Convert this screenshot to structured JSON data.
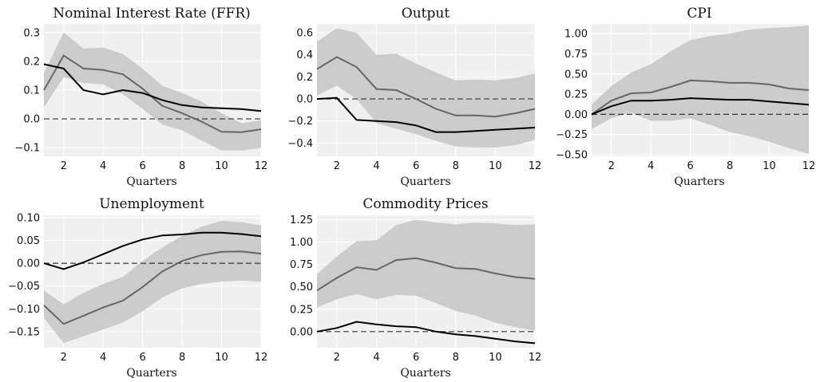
{
  "colors": {
    "band": "#cccccc",
    "median": "#666666",
    "point": "#000000",
    "zero": "#333333",
    "panel_bg": "#f0f0f0",
    "grid": "#ffffff"
  },
  "chart_data": [
    {
      "type": "line",
      "title": "Nominal Interest Rate (FFR)",
      "xlabel": "Quarters",
      "x": [
        1,
        2,
        3,
        4,
        5,
        6,
        7,
        8,
        9,
        10,
        11,
        12
      ],
      "xlim": [
        1,
        12
      ],
      "ylim": [
        -0.13,
        0.33
      ],
      "xticks": [
        2,
        4,
        6,
        8,
        10,
        12
      ],
      "yticks": [
        -0.1,
        0.0,
        0.1,
        0.2,
        0.3
      ],
      "ytick_labels": [
        "−0.1",
        "0.0",
        "0.1",
        "0.2",
        "0.3"
      ],
      "grid": true,
      "zero_line": 0,
      "band_upper": [
        0.16,
        0.3,
        0.245,
        0.248,
        0.225,
        0.175,
        0.115,
        0.09,
        0.06,
        0.02,
        -0.015,
        -0.005
      ],
      "band_lower": [
        0.04,
        0.145,
        0.125,
        0.12,
        0.085,
        0.035,
        -0.02,
        -0.04,
        -0.075,
        -0.11,
        -0.11,
        -0.1
      ],
      "median": [
        0.1,
        0.22,
        0.175,
        0.17,
        0.155,
        0.105,
        0.045,
        0.02,
        -0.01,
        -0.045,
        -0.046,
        -0.036
      ],
      "point": [
        0.19,
        0.175,
        0.1,
        0.085,
        0.1,
        0.09,
        0.065,
        0.048,
        0.04,
        0.037,
        0.034,
        0.027
      ]
    },
    {
      "type": "line",
      "title": "Output",
      "xlabel": "Quarters",
      "x": [
        1,
        2,
        3,
        4,
        5,
        6,
        7,
        8,
        9,
        10,
        11,
        12
      ],
      "xlim": [
        1,
        12
      ],
      "ylim": [
        -0.52,
        0.68
      ],
      "xticks": [
        2,
        4,
        6,
        8,
        10,
        12
      ],
      "yticks": [
        -0.4,
        -0.2,
        0.0,
        0.2,
        0.4,
        0.6
      ],
      "ytick_labels": [
        "−0.4",
        "−0.2",
        "0.0",
        "0.2",
        "0.4",
        "0.6"
      ],
      "grid": true,
      "zero_line": 0,
      "band_upper": [
        0.52,
        0.64,
        0.6,
        0.4,
        0.41,
        0.32,
        0.24,
        0.17,
        0.175,
        0.17,
        0.19,
        0.23
      ],
      "band_lower": [
        0.03,
        0.12,
        0.0,
        -0.22,
        -0.27,
        -0.32,
        -0.38,
        -0.43,
        -0.44,
        -0.44,
        -0.42,
        -0.37
      ],
      "median": [
        0.27,
        0.38,
        0.29,
        0.09,
        0.08,
        0.0,
        -0.09,
        -0.15,
        -0.15,
        -0.16,
        -0.13,
        -0.09
      ],
      "point": [
        0.0,
        0.01,
        -0.19,
        -0.2,
        -0.21,
        -0.24,
        -0.3,
        -0.3,
        -0.29,
        -0.28,
        -0.27,
        -0.26
      ]
    },
    {
      "type": "line",
      "title": "CPI",
      "xlabel": "Quarters",
      "x": [
        1,
        2,
        3,
        4,
        5,
        6,
        7,
        8,
        9,
        10,
        11,
        12
      ],
      "xlim": [
        1,
        12
      ],
      "ylim": [
        -0.52,
        1.12
      ],
      "xticks": [
        2,
        4,
        6,
        8,
        10,
        12
      ],
      "yticks": [
        -0.5,
        -0.25,
        0.0,
        0.25,
        0.5,
        0.75,
        1.0
      ],
      "ytick_labels": [
        "−0.50",
        "−0.25",
        "0.00",
        "0.25",
        "0.50",
        "0.75",
        "1.00"
      ],
      "grid": true,
      "zero_line": 0,
      "band_upper": [
        0.12,
        0.35,
        0.52,
        0.62,
        0.78,
        0.92,
        0.97,
        1.0,
        1.05,
        1.07,
        1.08,
        1.1
      ],
      "band_lower": [
        -0.18,
        -0.05,
        0.02,
        -0.08,
        -0.08,
        -0.05,
        -0.13,
        -0.22,
        -0.27,
        -0.34,
        -0.42,
        -0.49
      ],
      "median": [
        0.0,
        0.17,
        0.26,
        0.27,
        0.34,
        0.42,
        0.41,
        0.39,
        0.39,
        0.37,
        0.32,
        0.3
      ],
      "point": [
        0.0,
        0.1,
        0.17,
        0.17,
        0.18,
        0.2,
        0.19,
        0.18,
        0.18,
        0.16,
        0.14,
        0.12
      ]
    },
    {
      "type": "line",
      "title": "Unemployment",
      "xlabel": "Quarters",
      "x": [
        1,
        2,
        3,
        4,
        5,
        6,
        7,
        8,
        9,
        10,
        11,
        12
      ],
      "xlim": [
        1,
        12
      ],
      "ylim": [
        -0.185,
        0.105
      ],
      "xticks": [
        2,
        4,
        6,
        8,
        10,
        12
      ],
      "yticks": [
        -0.15,
        -0.1,
        -0.05,
        0.0,
        0.05,
        0.1
      ],
      "ytick_labels": [
        "−0.15",
        "−0.10",
        "−0.05",
        "0.00",
        "0.05",
        "0.10"
      ],
      "grid": true,
      "zero_line": 0,
      "band_upper": [
        -0.06,
        -0.09,
        -0.065,
        -0.045,
        -0.03,
        0.005,
        0.035,
        0.06,
        0.08,
        0.093,
        0.09,
        0.083
      ],
      "band_lower": [
        -0.12,
        -0.175,
        -0.16,
        -0.145,
        -0.13,
        -0.105,
        -0.075,
        -0.055,
        -0.045,
        -0.04,
        -0.038,
        -0.04
      ],
      "median": [
        -0.092,
        -0.133,
        -0.115,
        -0.097,
        -0.082,
        -0.052,
        -0.018,
        0.005,
        0.018,
        0.025,
        0.026,
        0.021
      ],
      "point": [
        0.0,
        -0.013,
        0.002,
        0.02,
        0.038,
        0.052,
        0.061,
        0.063,
        0.067,
        0.067,
        0.064,
        0.059
      ]
    },
    {
      "type": "line",
      "title": "Commodity Prices",
      "xlabel": "Quarters",
      "x": [
        1,
        2,
        3,
        4,
        5,
        6,
        7,
        8,
        9,
        10,
        11,
        12
      ],
      "xlim": [
        1,
        12
      ],
      "ylim": [
        -0.18,
        1.3
      ],
      "xticks": [
        2,
        4,
        6,
        8,
        10,
        12
      ],
      "yticks": [
        0.0,
        0.25,
        0.5,
        0.75,
        1.0,
        1.25
      ],
      "ytick_labels": [
        "0.00",
        "0.25",
        "0.50",
        "0.75",
        "1.00",
        "1.25"
      ],
      "grid": true,
      "zero_line": 0,
      "band_upper": [
        0.64,
        0.84,
        1.01,
        1.02,
        1.19,
        1.25,
        1.22,
        1.2,
        1.22,
        1.21,
        1.19,
        1.2
      ],
      "band_lower": [
        0.27,
        0.36,
        0.42,
        0.36,
        0.41,
        0.4,
        0.32,
        0.23,
        0.18,
        0.1,
        0.05,
        0.01
      ],
      "median": [
        0.46,
        0.6,
        0.72,
        0.69,
        0.8,
        0.82,
        0.77,
        0.71,
        0.7,
        0.65,
        0.61,
        0.59
      ],
      "point": [
        0.0,
        0.04,
        0.11,
        0.08,
        0.06,
        0.05,
        0.0,
        -0.03,
        -0.05,
        -0.08,
        -0.11,
        -0.13
      ]
    }
  ]
}
